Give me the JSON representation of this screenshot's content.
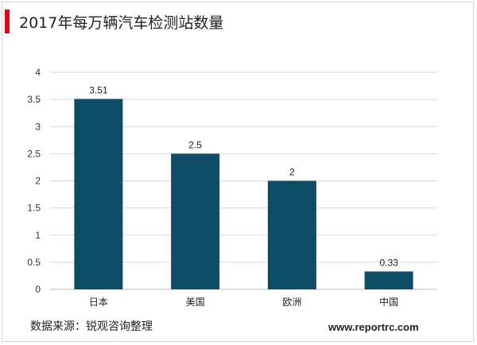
{
  "header": {
    "title": "2017年每万辆汽车检测站数量"
  },
  "footer": {
    "source": "数据来源：锐观咨询整理",
    "website": "www.reportrc.com"
  },
  "colors": {
    "bar": "#0d4d68",
    "accent": "#e60012",
    "grid": "#d9d9d9"
  },
  "chart_data": {
    "type": "bar",
    "title": "2017年每万辆汽车检测站数量",
    "xlabel": "",
    "ylabel": "",
    "categories": [
      "日本",
      "美国",
      "欧洲",
      "中国"
    ],
    "values": [
      3.51,
      2.5,
      2,
      0.33
    ],
    "value_labels": [
      "3.51",
      "2.5",
      "2",
      "0.33"
    ],
    "ylim": [
      0,
      4
    ],
    "yticks": [
      0,
      0.5,
      1,
      1.5,
      2,
      2.5,
      3,
      3.5,
      4
    ],
    "ytick_labels": [
      "0",
      "0.5",
      "1",
      "1.5",
      "2",
      "2.5",
      "3",
      "3.5",
      "4"
    ],
    "grid": true,
    "legend": "none"
  }
}
